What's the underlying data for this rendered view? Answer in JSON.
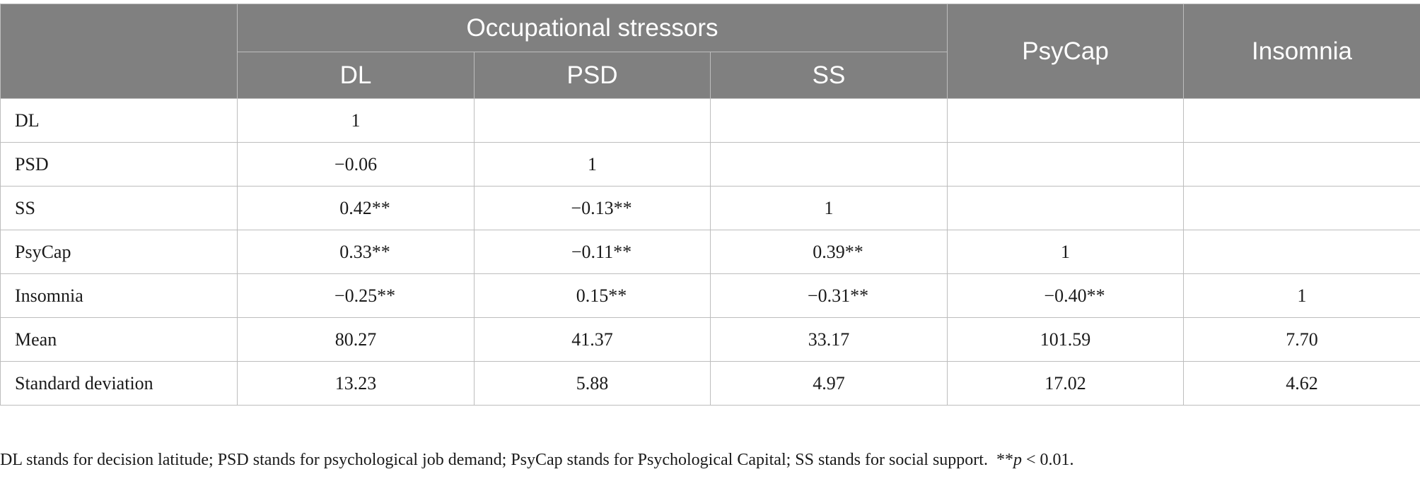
{
  "table": {
    "header": {
      "group_label": "Occupational stressors",
      "sub_columns": [
        "DL",
        "PSD",
        "SS"
      ],
      "psycap": "PsyCap",
      "insomnia": "Insomnia"
    },
    "rows": [
      {
        "label": "DL",
        "cells": [
          {
            "n": "1",
            "s": ""
          },
          {
            "n": "",
            "s": ""
          },
          {
            "n": "",
            "s": ""
          },
          {
            "n": "",
            "s": ""
          },
          {
            "n": "",
            "s": ""
          }
        ]
      },
      {
        "label": "PSD",
        "cells": [
          {
            "n": "−0.06",
            "s": ""
          },
          {
            "n": "1",
            "s": ""
          },
          {
            "n": "",
            "s": ""
          },
          {
            "n": "",
            "s": ""
          },
          {
            "n": "",
            "s": ""
          }
        ]
      },
      {
        "label": "SS",
        "cells": [
          {
            "n": "0.42",
            "s": "**"
          },
          {
            "n": "−0.13",
            "s": "**"
          },
          {
            "n": "1",
            "s": ""
          },
          {
            "n": "",
            "s": ""
          },
          {
            "n": "",
            "s": ""
          }
        ]
      },
      {
        "label": "PsyCap",
        "cells": [
          {
            "n": "0.33",
            "s": "**"
          },
          {
            "n": "−0.11",
            "s": "**"
          },
          {
            "n": "0.39",
            "s": "**"
          },
          {
            "n": "1",
            "s": ""
          },
          {
            "n": "",
            "s": ""
          }
        ]
      },
      {
        "label": "Insomnia",
        "cells": [
          {
            "n": "−0.25",
            "s": "**"
          },
          {
            "n": "0.15",
            "s": "**"
          },
          {
            "n": "−0.31",
            "s": "**"
          },
          {
            "n": "−0.40",
            "s": "**"
          },
          {
            "n": "1",
            "s": ""
          }
        ]
      },
      {
        "label": "Mean",
        "cells": [
          {
            "n": "80.27",
            "s": ""
          },
          {
            "n": "41.37",
            "s": ""
          },
          {
            "n": "33.17",
            "s": ""
          },
          {
            "n": "101.59",
            "s": ""
          },
          {
            "n": "7.70",
            "s": ""
          }
        ]
      },
      {
        "label": "Standard deviation",
        "cells": [
          {
            "n": "13.23",
            "s": ""
          },
          {
            "n": "5.88",
            "s": ""
          },
          {
            "n": "4.97",
            "s": ""
          },
          {
            "n": "17.02",
            "s": ""
          },
          {
            "n": "4.62",
            "s": ""
          }
        ]
      }
    ]
  },
  "footnote": {
    "text": "DL stands for decision latitude; PSD stands for psychological job demand; PsyCap stands for Psychological Capital; SS stands for social support.",
    "stars": "**",
    "p_symbol": "p",
    "p_rest": " < 0.01."
  }
}
